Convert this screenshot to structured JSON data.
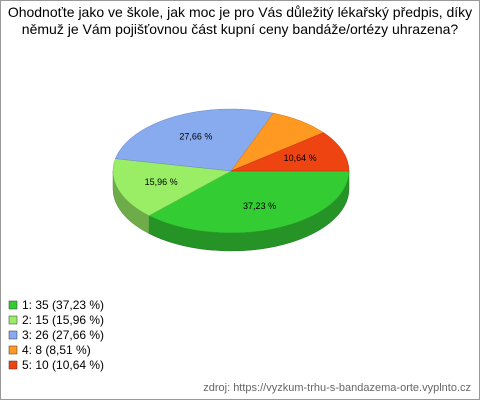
{
  "chart_data": {
    "type": "pie",
    "title": "Ohodnoťte jako ve škole, jak moc je pro Vás důležitý lékařský předpis, díky němuž je Vám pojišťovnou část kupní ceny bandáže/ortézy uhrazena?",
    "categories": [
      "1: 35 (37,23 %)",
      "2: 15 (15,96 %)",
      "3: 26 (27,66 %)",
      "4: 8 (8,51 %)",
      "5: 10 (10,64 %)"
    ],
    "values": [
      37.23,
      15.96,
      27.66,
      8.51,
      10.64
    ],
    "value_labels": [
      "37,23 %",
      "15,96 %",
      "27,66 %",
      null,
      "10,64 %"
    ],
    "colors": [
      "#33cc33",
      "#99ee66",
      "#88aaee",
      "#ff9922",
      "#ee4411"
    ],
    "source": "zdroj: https://vyzkum-trhu-s-bandazema-orte.vyplnto.cz"
  }
}
